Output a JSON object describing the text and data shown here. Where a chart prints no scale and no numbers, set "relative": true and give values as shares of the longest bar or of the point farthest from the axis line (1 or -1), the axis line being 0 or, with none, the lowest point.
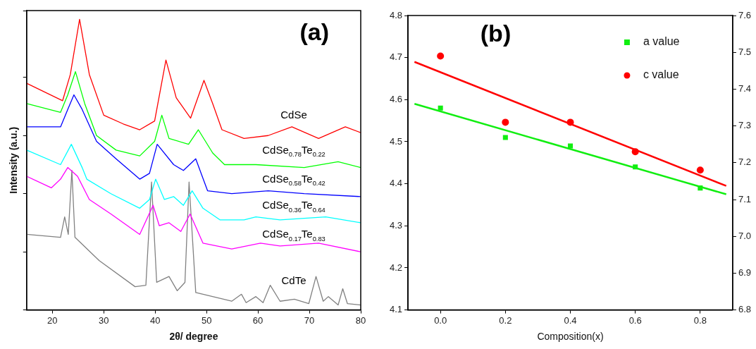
{
  "chart_data": [
    {
      "type": "line",
      "title": "(a)",
      "xlabel": "2θ/ degree",
      "ylabel": "Intensity (a.u.)",
      "relative": true,
      "xlim": [
        15,
        80
      ],
      "xticks": [
        20,
        30,
        40,
        50,
        60,
        70,
        80
      ],
      "grid": false,
      "legend": false,
      "marker": "none",
      "series": [
        {
          "name": "CdSe",
          "color": "#ff0000",
          "x": [
            15,
            22,
            23.5,
            25.3,
            27.2,
            30,
            33.8,
            37,
            39.9,
            42.1,
            44.1,
            46.9,
            49.5,
            51.2,
            53,
            57.3,
            62,
            66.6,
            71.8,
            77,
            80
          ],
          "values": [
            0.78,
            0.72,
            0.81,
            1.0,
            0.81,
            0.67,
            0.64,
            0.62,
            0.65,
            0.86,
            0.73,
            0.66,
            0.79,
            0.71,
            0.62,
            0.59,
            0.6,
            0.63,
            0.59,
            0.63,
            0.61
          ]
        },
        {
          "name": "CdSe$_{0.78}$Te$_{0.22}$",
          "color": "#00ff00",
          "x": [
            15,
            21.6,
            23,
            24.5,
            26.3,
            28.6,
            32.4,
            37,
            39.9,
            41.3,
            42.7,
            46.5,
            48.4,
            51.2,
            53.5,
            59.6,
            69,
            75.6,
            80
          ],
          "values": [
            0.71,
            0.68,
            0.74,
            0.82,
            0.71,
            0.6,
            0.55,
            0.53,
            0.58,
            0.67,
            0.59,
            0.57,
            0.62,
            0.54,
            0.5,
            0.5,
            0.49,
            0.51,
            0.49
          ]
        },
        {
          "name": "CdSe$_{0.58}$Te$_{0.42}$",
          "color": "#0000ff",
          "x": [
            15,
            21.6,
            23,
            24.2,
            25.8,
            28.6,
            32.4,
            37,
            38.9,
            40.4,
            43.6,
            45.5,
            47.9,
            50.2,
            54.9,
            62,
            69,
            80
          ],
          "values": [
            0.63,
            0.63,
            0.69,
            0.74,
            0.69,
            0.58,
            0.52,
            0.45,
            0.47,
            0.57,
            0.5,
            0.48,
            0.52,
            0.41,
            0.4,
            0.41,
            0.4,
            0.39
          ]
        },
        {
          "name": "CdSe$_{0.36}$Te$_{0.64}$",
          "color": "#00ffff",
          "x": [
            15,
            21.6,
            23.7,
            25.8,
            26.7,
            31.4,
            37,
            38.9,
            40.1,
            41.8,
            43.6,
            45.5,
            47.2,
            49.3,
            52.6,
            57.3,
            59.6,
            64.3,
            73.2,
            80
          ],
          "values": [
            0.55,
            0.5,
            0.57,
            0.49,
            0.45,
            0.4,
            0.35,
            0.38,
            0.45,
            0.38,
            0.39,
            0.36,
            0.41,
            0.35,
            0.31,
            0.31,
            0.32,
            0.31,
            0.32,
            0.3
          ]
        },
        {
          "name": "CdSe$_{0.17}$Te$_{0.83}$",
          "color": "#ff00ff",
          "x": [
            15,
            19.8,
            21.6,
            23,
            24.9,
            27.2,
            31.4,
            37,
            39.6,
            40.8,
            42.7,
            45,
            46.8,
            49.3,
            54.9,
            60.5,
            64.3,
            71.8,
            80
          ],
          "values": [
            0.46,
            0.42,
            0.45,
            0.49,
            0.46,
            0.38,
            0.33,
            0.26,
            0.36,
            0.29,
            0.3,
            0.27,
            0.33,
            0.23,
            0.21,
            0.23,
            0.22,
            0.23,
            0.2
          ]
        },
        {
          "name": "CdTe",
          "color": "#808080",
          "x": [
            15,
            21.6,
            22.4,
            23.1,
            23.8,
            24.4,
            29.1,
            36.1,
            38.2,
            39.3,
            40.3,
            42.7,
            44.3,
            45.8,
            46.6,
            47.9,
            54.9,
            56.8,
            57.7,
            59.6,
            61,
            62.4,
            64.3,
            67.1,
            69.9,
            71.3,
            72.7,
            73.7,
            75.6,
            76.5,
            77.4,
            80
          ],
          "values": [
            0.26,
            0.25,
            0.32,
            0.26,
            0.48,
            0.25,
            0.17,
            0.08,
            0.085,
            0.44,
            0.095,
            0.115,
            0.066,
            0.095,
            0.44,
            0.06,
            0.03,
            0.054,
            0.025,
            0.046,
            0.025,
            0.085,
            0.03,
            0.037,
            0.022,
            0.115,
            0.03,
            0.046,
            0.017,
            0.073,
            0.022,
            0.017
          ]
        }
      ]
    },
    {
      "type": "scatter",
      "title": "(b)",
      "xlabel": "Composition(x)",
      "xlim": [
        -0.1,
        0.9
      ],
      "xticks": [
        {
          "value": 0,
          "label": "0.0"
        },
        0.2,
        0.4,
        0.6,
        0.8
      ],
      "ylim": [
        4.1,
        4.8
      ],
      "yticks": [
        4.1,
        4.2,
        4.3,
        4.4,
        4.5,
        4.6,
        4.7,
        4.8
      ],
      "y2lim": [
        6.8,
        7.6
      ],
      "y2ticks": [
        6.8,
        6.9,
        {
          "value": 7,
          "label": "7.0"
        },
        7.1,
        7.2,
        7.3,
        7.4,
        7.5,
        7.6
      ],
      "grid": false,
      "legend": "top right",
      "series": [
        {
          "name": "a value",
          "color": "#11ee11",
          "marker": "square",
          "x": [
            0,
            0.2,
            0.4,
            0.6,
            0.8
          ],
          "values": [
            4.58,
            4.51,
            4.49,
            4.44,
            4.39
          ]
        },
        {
          "name": "c value",
          "color": "#ff0000",
          "marker": "circle",
          "axis": "y2",
          "x": [
            0,
            0.2,
            0.4,
            0.6,
            0.8
          ],
          "values": [
            7.49,
            7.31,
            7.31,
            7.23,
            7.18
          ]
        },
        {
          "type": "line",
          "color": "#11ee11",
          "marker": "none",
          "x": [
            -0.08,
            0.88
          ],
          "values": [
            4.59,
            4.375
          ]
        },
        {
          "type": "line",
          "color": "#ff0000",
          "marker": "none",
          "axis": "y2",
          "x": [
            -0.08,
            0.88
          ],
          "values": [
            7.474,
            7.137
          ]
        }
      ]
    }
  ]
}
